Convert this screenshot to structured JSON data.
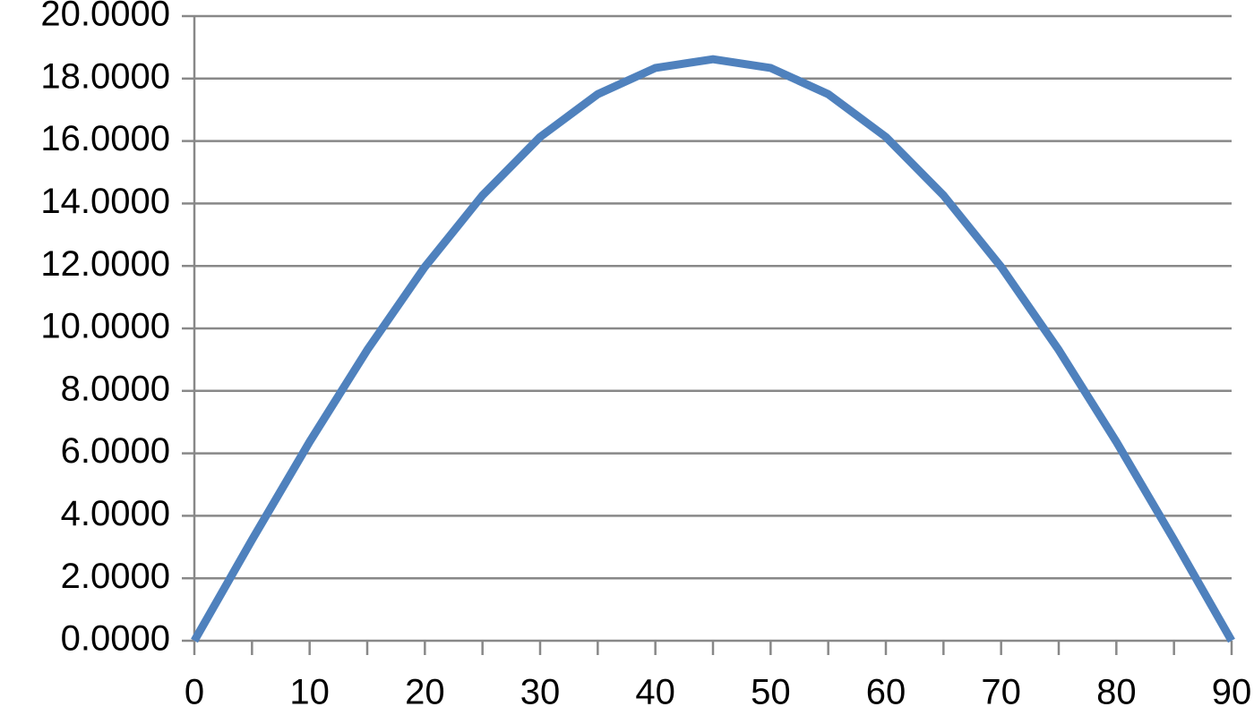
{
  "chart_data": {
    "type": "line",
    "x": [
      0,
      5,
      10,
      15,
      20,
      25,
      30,
      35,
      40,
      45,
      50,
      55,
      60,
      65,
      70,
      75,
      80,
      85,
      90
    ],
    "series": [
      {
        "color": "#4f81bd",
        "values": [
          0,
          3.23,
          6.37,
          9.31,
          11.97,
          14.26,
          16.13,
          17.5,
          18.34,
          18.62,
          18.34,
          17.5,
          16.13,
          14.26,
          11.97,
          9.31,
          6.37,
          3.23,
          0
        ]
      }
    ],
    "xlim": [
      0,
      90
    ],
    "xticks": [
      0,
      10,
      20,
      30,
      40,
      50,
      60,
      70,
      80,
      90
    ],
    "ylim": [
      0,
      20
    ],
    "yticks": [
      {
        "value": 0,
        "label": "0.0000"
      },
      {
        "value": 2,
        "label": "2.0000"
      },
      {
        "value": 4,
        "label": "4.0000"
      },
      {
        "value": 6,
        "label": "6.0000"
      },
      {
        "value": 8,
        "label": "8.0000"
      },
      {
        "value": 10,
        "label": "10.0000"
      },
      {
        "value": 12,
        "label": "12.0000"
      },
      {
        "value": 14,
        "label": "14.0000"
      },
      {
        "value": 16,
        "label": "16.0000"
      },
      {
        "value": 18,
        "label": "18.0000"
      },
      {
        "value": 20,
        "label": "20.0000"
      }
    ],
    "grid": true
  }
}
